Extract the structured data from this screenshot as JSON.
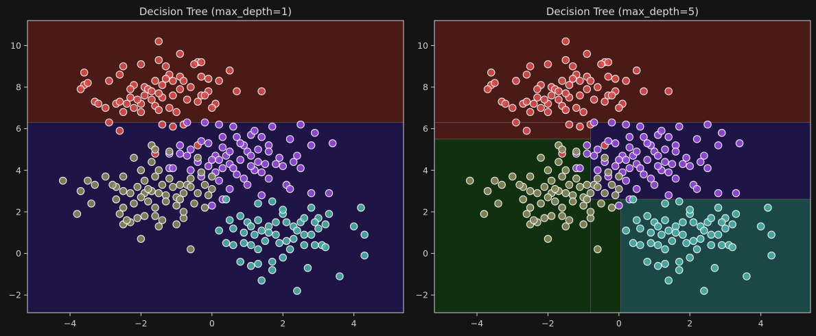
{
  "colors": {
    "background": "#141414",
    "axis_frame": "#cfcfcf",
    "region_red": "#4a1a16",
    "region_purple": "#1e1546",
    "region_green": "#10300f",
    "region_teal": "#1b4747",
    "point_red": "#d94f4f",
    "point_purple": "#9a4fe0",
    "point_olive": "#8a8a60",
    "point_teal": "#4fb3aa",
    "point_edge": "#ffffff"
  },
  "chart_data": [
    {
      "type": "scatter",
      "title": "Decision Tree (max_depth=1)",
      "xlim": [
        -5.2,
        5.4
      ],
      "ylim": [
        -2.85,
        11.2
      ],
      "xticks": [
        -4,
        -2,
        0,
        2,
        4
      ],
      "yticks": [
        -2,
        0,
        2,
        4,
        6,
        8,
        10
      ],
      "grid": false,
      "regions": [
        {
          "label": "red",
          "x": [
            -5.2,
            5.4
          ],
          "y": [
            6.3,
            11.2
          ]
        },
        {
          "label": "purple",
          "x": [
            -5.2,
            5.4
          ],
          "y": [
            -2.85,
            6.3
          ]
        }
      ]
    },
    {
      "type": "scatter",
      "title": "Decision Tree (max_depth=5)",
      "xlim": [
        -5.2,
        5.4
      ],
      "ylim": [
        -2.85,
        11.2
      ],
      "xticks": [
        -4,
        -2,
        0,
        2,
        4
      ],
      "yticks": [
        -2,
        0,
        2,
        4,
        6,
        8,
        10
      ],
      "grid": false,
      "regions": [
        {
          "label": "red",
          "x": [
            -5.2,
            5.4
          ],
          "y": [
            6.3,
            11.2
          ]
        },
        {
          "label": "red",
          "x": [
            -5.2,
            -0.8
          ],
          "y": [
            5.5,
            6.3
          ]
        },
        {
          "label": "green",
          "x": [
            -5.2,
            -0.8
          ],
          "y": [
            -2.85,
            5.5
          ]
        },
        {
          "label": "purple",
          "x": [
            -0.8,
            5.4
          ],
          "y": [
            2.6,
            6.3
          ]
        },
        {
          "label": "green",
          "x": [
            -0.8,
            0.05
          ],
          "y": [
            -2.85,
            2.6
          ]
        },
        {
          "label": "teal",
          "x": [
            0.05,
            5.4
          ],
          "y": [
            -2.85,
            2.6
          ]
        }
      ]
    }
  ],
  "points": {
    "red": [
      [
        -1.5,
        10.2
      ],
      [
        -0.9,
        9.6
      ],
      [
        -1.5,
        9.3
      ],
      [
        -1.3,
        9.0
      ],
      [
        -2.0,
        9.1
      ],
      [
        -0.4,
        9.2
      ],
      [
        -0.3,
        9.2
      ],
      [
        -0.5,
        9.1
      ],
      [
        -3.6,
        8.7
      ],
      [
        -2.6,
        8.6
      ],
      [
        -2.5,
        9.0
      ],
      [
        -1.2,
        8.6
      ],
      [
        -0.9,
        8.5
      ],
      [
        -0.3,
        8.5
      ],
      [
        0.5,
        8.8
      ],
      [
        -3.6,
        8.1
      ],
      [
        -3.5,
        8.2
      ],
      [
        -2.9,
        8.3
      ],
      [
        -2.2,
        8.1
      ],
      [
        -1.9,
        8.0
      ],
      [
        -1.6,
        8.3
      ],
      [
        -1.8,
        7.9
      ],
      [
        -1.4,
        8.1
      ],
      [
        -1.1,
        8.3
      ],
      [
        -0.8,
        8.3
      ],
      [
        -0.6,
        8.0
      ],
      [
        -0.1,
        8.4
      ],
      [
        0.2,
        8.3
      ],
      [
        -3.7,
        7.9
      ],
      [
        -3.3,
        7.3
      ],
      [
        -3.2,
        7.2
      ],
      [
        -2.7,
        7.2
      ],
      [
        -2.6,
        7.3
      ],
      [
        -2.3,
        7.5
      ],
      [
        -2.2,
        7.0
      ],
      [
        -2.0,
        7.2
      ],
      [
        -1.7,
        7.4
      ],
      [
        -1.6,
        7.1
      ],
      [
        -1.4,
        7.5
      ],
      [
        -1.1,
        7.6
      ],
      [
        -0.7,
        7.4
      ],
      [
        -0.3,
        7.6
      ],
      [
        -0.1,
        7.8
      ],
      [
        0.1,
        7.2
      ],
      [
        0.7,
        7.8
      ],
      [
        1.4,
        7.8
      ],
      [
        -3.0,
        7.0
      ],
      [
        -2.5,
        6.8
      ],
      [
        -2.4,
        7.2
      ],
      [
        -2.0,
        6.8
      ],
      [
        -1.5,
        6.9
      ],
      [
        -1.2,
        7.0
      ],
      [
        -1.0,
        6.8
      ],
      [
        -0.4,
        7.3
      ],
      [
        0.0,
        7.0
      ],
      [
        -2.9,
        6.3
      ],
      [
        -2.6,
        5.9
      ],
      [
        -1.4,
        6.2
      ],
      [
        -1.1,
        6.1
      ],
      [
        -0.8,
        6.2
      ],
      [
        -0.4,
        5.2
      ],
      [
        -1.6,
        4.8
      ],
      [
        -1.9,
        7.6
      ],
      [
        -1.7,
        7.8
      ],
      [
        -2.3,
        7.9
      ],
      [
        -1.5,
        7.7
      ],
      [
        -0.9,
        7.9
      ],
      [
        -0.2,
        7.6
      ],
      [
        -2.1,
        7.4
      ],
      [
        -1.3,
        8.4
      ]
    ],
    "purple": [
      [
        -0.7,
        6.3
      ],
      [
        -0.2,
        6.3
      ],
      [
        0.2,
        6.2
      ],
      [
        0.6,
        6.1
      ],
      [
        1.1,
        5.7
      ],
      [
        1.4,
        5.6
      ],
      [
        1.7,
        6.1
      ],
      [
        2.5,
        6.2
      ],
      [
        2.9,
        5.8
      ],
      [
        3.4,
        5.3
      ],
      [
        2.8,
        5.2
      ],
      [
        -0.9,
        5.2
      ],
      [
        -0.6,
        5.0
      ],
      [
        -0.3,
        5.4
      ],
      [
        -0.1,
        5.3
      ],
      [
        0.3,
        5.1
      ],
      [
        0.4,
        4.7
      ],
      [
        0.7,
        5.6
      ],
      [
        0.9,
        5.2
      ],
      [
        1.0,
        4.9
      ],
      [
        1.3,
        5.0
      ],
      [
        1.6,
        5.2
      ],
      [
        2.2,
        5.5
      ],
      [
        0.1,
        4.7
      ],
      [
        0.2,
        4.5
      ],
      [
        -1.2,
        4.8
      ],
      [
        -0.7,
        4.7
      ],
      [
        -0.4,
        4.4
      ],
      [
        0.0,
        4.5
      ],
      [
        0.5,
        4.3
      ],
      [
        0.6,
        4.1
      ],
      [
        0.8,
        4.5
      ],
      [
        1.1,
        4.7
      ],
      [
        1.3,
        4.4
      ],
      [
        1.5,
        4.3
      ],
      [
        1.2,
        4.0
      ],
      [
        1.8,
        4.3
      ],
      [
        2.0,
        4.2
      ],
      [
        2.5,
        4.1
      ],
      [
        2.4,
        4.7
      ],
      [
        -1.2,
        4.1
      ],
      [
        -0.6,
        4.0
      ],
      [
        -0.3,
        3.7
      ],
      [
        0.1,
        3.9
      ],
      [
        0.2,
        3.5
      ],
      [
        0.7,
        3.8
      ],
      [
        0.9,
        3.6
      ],
      [
        1.0,
        3.3
      ],
      [
        1.4,
        3.9
      ],
      [
        1.6,
        3.6
      ],
      [
        2.1,
        3.3
      ],
      [
        2.2,
        3.1
      ],
      [
        0.3,
        2.6
      ],
      [
        0.5,
        3.1
      ],
      [
        1.4,
        2.8
      ],
      [
        2.8,
        2.9
      ],
      [
        3.3,
        2.9
      ],
      [
        0.0,
        2.3
      ],
      [
        -1.1,
        4.1
      ],
      [
        -0.9,
        4.8
      ],
      [
        0.3,
        5.6
      ],
      [
        0.8,
        5.3
      ],
      [
        1.2,
        5.9
      ],
      [
        1.6,
        4.9
      ],
      [
        1.9,
        4.6
      ],
      [
        2.3,
        4.4
      ],
      [
        0.5,
        4.9
      ],
      [
        1.1,
        4.2
      ],
      [
        -0.1,
        4.2
      ],
      [
        0.3,
        4.1
      ]
    ],
    "olive": [
      [
        -1.7,
        5.2
      ],
      [
        -1.6,
        5.0
      ],
      [
        -1.2,
        4.9
      ],
      [
        -2.2,
        4.6
      ],
      [
        -1.7,
        4.4
      ],
      [
        -0.4,
        4.6
      ],
      [
        -2.0,
        4.0
      ],
      [
        -2.5,
        3.7
      ],
      [
        -1.9,
        3.5
      ],
      [
        -1.6,
        3.7
      ],
      [
        -1.4,
        3.3
      ],
      [
        -1.1,
        3.2
      ],
      [
        -0.9,
        3.3
      ],
      [
        -0.7,
        3.3
      ],
      [
        -0.6,
        3.6
      ],
      [
        -0.3,
        3.9
      ],
      [
        0.0,
        3.7
      ],
      [
        0.0,
        3.1
      ],
      [
        -3.7,
        3.0
      ],
      [
        -3.5,
        3.5
      ],
      [
        -3.3,
        3.3
      ],
      [
        -2.7,
        3.2
      ],
      [
        -2.5,
        3.0
      ],
      [
        -2.1,
        3.2
      ],
      [
        -1.9,
        2.9
      ],
      [
        -1.7,
        3.0
      ],
      [
        -1.5,
        2.9
      ],
      [
        -1.3,
        2.8
      ],
      [
        -1.0,
        2.7
      ],
      [
        -0.8,
        2.9
      ],
      [
        -0.6,
        3.2
      ],
      [
        -0.4,
        2.9
      ],
      [
        -0.1,
        2.8
      ],
      [
        -4.2,
        3.5
      ],
      [
        -3.4,
        2.4
      ],
      [
        -2.7,
        2.6
      ],
      [
        -2.5,
        2.2
      ],
      [
        -2.2,
        2.4
      ],
      [
        -2.0,
        2.7
      ],
      [
        -1.8,
        2.5
      ],
      [
        -1.6,
        2.2
      ],
      [
        -1.3,
        2.5
      ],
      [
        -0.9,
        2.6
      ],
      [
        -0.5,
        2.4
      ],
      [
        -0.2,
        2.2
      ],
      [
        -3.8,
        1.9
      ],
      [
        -2.5,
        1.4
      ],
      [
        -2.3,
        1.5
      ],
      [
        -2.1,
        1.7
      ],
      [
        -1.9,
        1.8
      ],
      [
        -1.6,
        1.8
      ],
      [
        -1.5,
        1.3
      ],
      [
        -1.0,
        1.4
      ],
      [
        -0.8,
        1.7
      ],
      [
        -2.0,
        0.7
      ],
      [
        -0.6,
        0.2
      ],
      [
        -3.0,
        3.7
      ],
      [
        -2.8,
        3.3
      ],
      [
        -1.8,
        3.1
      ],
      [
        -1.2,
        3.6
      ],
      [
        -0.8,
        2.0
      ],
      [
        -2.3,
        2.9
      ],
      [
        -1.4,
        1.6
      ],
      [
        -2.6,
        1.9
      ],
      [
        -1.0,
        2.3
      ],
      [
        -0.2,
        3.3
      ],
      [
        -1.5,
        4.0
      ],
      [
        -2.4,
        1.6
      ]
    ],
    "teal": [
      [
        0.4,
        2.6
      ],
      [
        0.8,
        1.8
      ],
      [
        1.3,
        2.4
      ],
      [
        1.7,
        2.5
      ],
      [
        2.0,
        1.9
      ],
      [
        2.8,
        2.2
      ],
      [
        3.0,
        1.7
      ],
      [
        4.2,
        2.2
      ],
      [
        0.5,
        1.6
      ],
      [
        1.0,
        1.5
      ],
      [
        1.4,
        1.1
      ],
      [
        1.6,
        1.3
      ],
      [
        2.3,
        1.3
      ],
      [
        2.5,
        1.5
      ],
      [
        3.3,
        1.9
      ],
      [
        3.2,
        1.4
      ],
      [
        0.2,
        1.1
      ],
      [
        0.6,
        1.2
      ],
      [
        1.2,
        0.9
      ],
      [
        1.8,
        0.9
      ],
      [
        2.1,
        0.6
      ],
      [
        2.4,
        1.1
      ],
      [
        2.8,
        0.9
      ],
      [
        3.0,
        1.2
      ],
      [
        4.0,
        1.3
      ],
      [
        4.3,
        0.9
      ],
      [
        0.6,
        0.4
      ],
      [
        0.9,
        0.5
      ],
      [
        1.3,
        0.2
      ],
      [
        1.5,
        0.6
      ],
      [
        1.9,
        0.5
      ],
      [
        2.2,
        0.2
      ],
      [
        2.6,
        0.4
      ],
      [
        2.9,
        0.4
      ],
      [
        3.1,
        0.4
      ],
      [
        0.8,
        -0.4
      ],
      [
        1.1,
        -0.6
      ],
      [
        1.3,
        -0.5
      ],
      [
        1.7,
        -0.4
      ],
      [
        2.0,
        -0.2
      ],
      [
        2.7,
        -0.7
      ],
      [
        4.3,
        -0.1
      ],
      [
        1.7,
        -0.8
      ],
      [
        1.4,
        -1.3
      ],
      [
        2.4,
        -1.8
      ],
      [
        3.6,
        -1.1
      ],
      [
        0.9,
        1.0
      ],
      [
        1.6,
        1.0
      ],
      [
        2.1,
        1.5
      ],
      [
        2.6,
        0.9
      ],
      [
        1.1,
        1.3
      ],
      [
        3.2,
        0.3
      ],
      [
        2.9,
        1.5
      ],
      [
        1.8,
        1.5
      ],
      [
        1.3,
        1.6
      ],
      [
        2.3,
        0.7
      ],
      [
        0.4,
        0.5
      ],
      [
        1.1,
        0.4
      ],
      [
        2.0,
        2.1
      ],
      [
        2.6,
        1.7
      ]
    ]
  }
}
